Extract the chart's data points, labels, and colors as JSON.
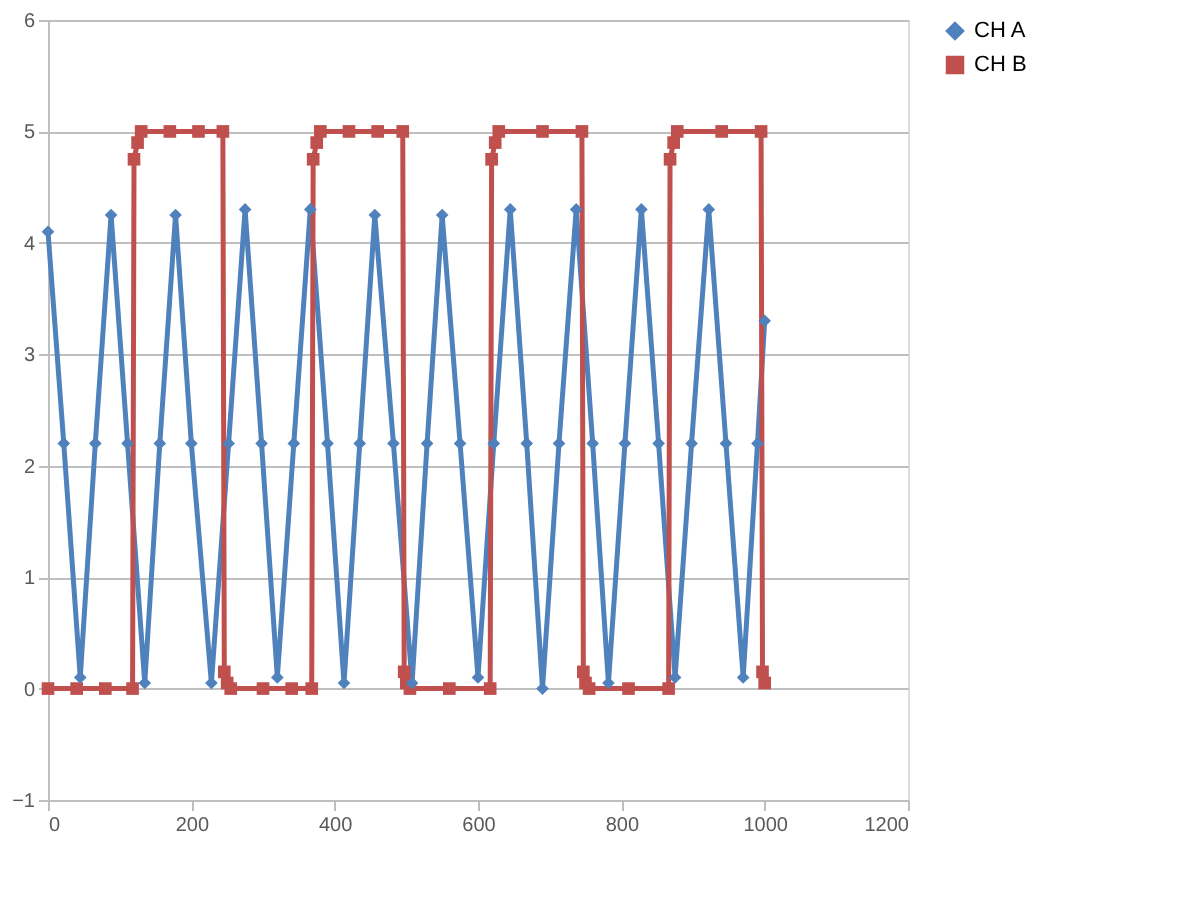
{
  "chart_data": {
    "type": "line",
    "xlim": [
      0,
      1200
    ],
    "xticks": [
      0,
      200,
      400,
      600,
      800,
      1000,
      1200
    ],
    "ylim": [
      -1,
      6
    ],
    "yticks": [
      -1,
      0,
      1,
      2,
      3,
      4,
      5,
      6
    ],
    "grid": "y",
    "legend": "right",
    "line_style": "solid",
    "series": [
      {
        "name": "CH A",
        "color": "#4f81bd",
        "marker": "diamond",
        "x": [
          0,
          22,
          45,
          66,
          88,
          111,
          135,
          156,
          178,
          200,
          228,
          252,
          275,
          298,
          320,
          343,
          366,
          390,
          413,
          435,
          456,
          482,
          508,
          529,
          550,
          575,
          600,
          622,
          645,
          668,
          690,
          713,
          737,
          760,
          782,
          805,
          828,
          852,
          875,
          898,
          922,
          946,
          970,
          990,
          1000
        ],
        "values": [
          4.1,
          2.2,
          0.1,
          2.2,
          4.25,
          2.2,
          0.05,
          2.2,
          4.25,
          2.2,
          0.05,
          2.2,
          4.3,
          2.2,
          0.1,
          2.2,
          4.3,
          2.2,
          0.05,
          2.2,
          4.25,
          2.2,
          0.05,
          2.2,
          4.25,
          2.2,
          0.1,
          2.2,
          4.3,
          2.2,
          0.0,
          2.2,
          4.3,
          2.2,
          0.05,
          2.2,
          4.3,
          2.2,
          0.1,
          2.2,
          4.3,
          2.2,
          0.1,
          2.2,
          3.3
        ]
      },
      {
        "name": "CH B",
        "color": "#c0504d",
        "marker": "square",
        "x": [
          0,
          40,
          80,
          118,
          120,
          125,
          130,
          170,
          210,
          244,
          246,
          250,
          255,
          300,
          340,
          368,
          370,
          375,
          380,
          420,
          460,
          495,
          497,
          500,
          505,
          560,
          617,
          619,
          624,
          629,
          690,
          745,
          747,
          750,
          755,
          810,
          866,
          868,
          873,
          878,
          940,
          995,
          997,
          1000
        ],
        "values": [
          0,
          0,
          0,
          0,
          4.75,
          4.9,
          5,
          5,
          5,
          5,
          0.15,
          0.05,
          0,
          0,
          0,
          0,
          4.75,
          4.9,
          5,
          5,
          5,
          5,
          0.15,
          0.05,
          0,
          0,
          0,
          4.75,
          4.9,
          5,
          5,
          5,
          0.15,
          0.05,
          0,
          0,
          0,
          4.75,
          4.9,
          5,
          5,
          5,
          0.15,
          0.05
        ]
      }
    ]
  }
}
